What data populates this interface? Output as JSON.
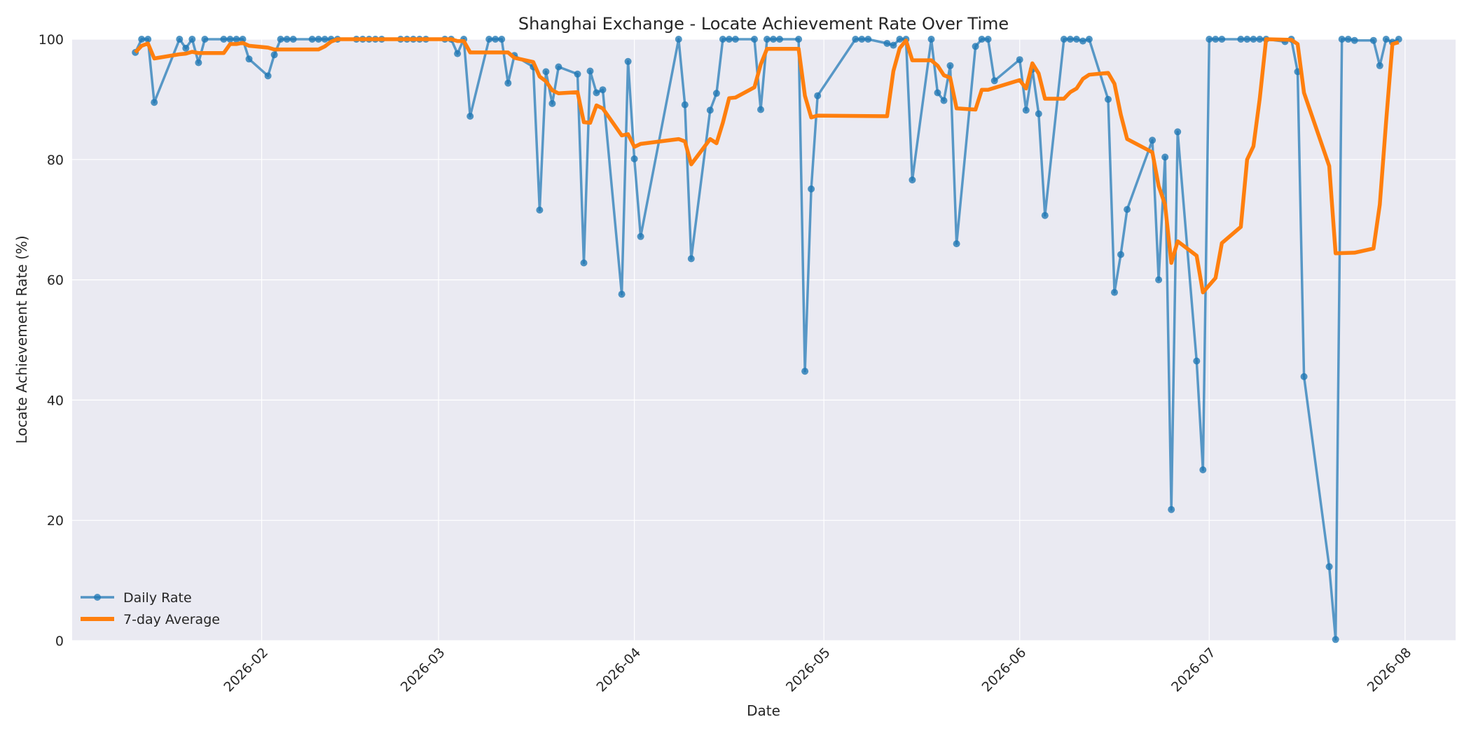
{
  "chart_data": {
    "type": "line",
    "title": "Shanghai Exchange - Locate Achievement Rate Over Time",
    "xlabel": "Date",
    "ylabel": "Locate Achievement Rate (%)",
    "xlim": [
      "2026-01-02",
      "2026-08-09"
    ],
    "ylim": [
      0,
      100
    ],
    "grid": true,
    "legend_position": "bottom-left",
    "x_ticks": [
      "2026-02",
      "2026-03",
      "2026-04",
      "2026-05",
      "2026-06",
      "2026-07",
      "2026-08"
    ],
    "y_ticks": [
      0,
      20,
      40,
      60,
      80,
      100
    ],
    "colors": {
      "daily": "#1f77b4",
      "avg": "#ff7f0e",
      "plot_bg": "#eaeaf2",
      "grid": "#ffffff"
    },
    "series": [
      {
        "name": "Daily Rate",
        "style": "line-markers",
        "points": [
          [
            "2026-01-12",
            97.8
          ],
          [
            "2026-01-13",
            100
          ],
          [
            "2026-01-14",
            100
          ],
          [
            "2026-01-15",
            89.5
          ],
          [
            "2026-01-19",
            100
          ],
          [
            "2026-01-20",
            98.5
          ],
          [
            "2026-01-21",
            100
          ],
          [
            "2026-01-22",
            96.1
          ],
          [
            "2026-01-23",
            100
          ],
          [
            "2026-01-26",
            100
          ],
          [
            "2026-01-27",
            100
          ],
          [
            "2026-01-28",
            100
          ],
          [
            "2026-01-29",
            100
          ],
          [
            "2026-01-30",
            96.7
          ],
          [
            "2026-02-02",
            93.9
          ],
          [
            "2026-02-03",
            97.4
          ],
          [
            "2026-02-04",
            100
          ],
          [
            "2026-02-05",
            100
          ],
          [
            "2026-02-06",
            100
          ],
          [
            "2026-02-09",
            100
          ],
          [
            "2026-02-10",
            100
          ],
          [
            "2026-02-11",
            100
          ],
          [
            "2026-02-12",
            100
          ],
          [
            "2026-02-13",
            100
          ],
          [
            "2026-02-16",
            100
          ],
          [
            "2026-02-17",
            100
          ],
          [
            "2026-02-18",
            100
          ],
          [
            "2026-02-19",
            100
          ],
          [
            "2026-02-20",
            100
          ],
          [
            "2026-02-23",
            100
          ],
          [
            "2026-02-24",
            100
          ],
          [
            "2026-02-25",
            100
          ],
          [
            "2026-02-26",
            100
          ],
          [
            "2026-02-27",
            100
          ],
          [
            "2026-03-02",
            100
          ],
          [
            "2026-03-03",
            100
          ],
          [
            "2026-03-04",
            97.6
          ],
          [
            "2026-03-05",
            100
          ],
          [
            "2026-03-06",
            87.2
          ],
          [
            "2026-03-09",
            100
          ],
          [
            "2026-03-10",
            100
          ],
          [
            "2026-03-11",
            100
          ],
          [
            "2026-03-12",
            92.7
          ],
          [
            "2026-03-13",
            97.3
          ],
          [
            "2026-03-16",
            95.4
          ],
          [
            "2026-03-17",
            71.6
          ],
          [
            "2026-03-18",
            94.6
          ],
          [
            "2026-03-19",
            89.3
          ],
          [
            "2026-03-20",
            95.4
          ],
          [
            "2026-03-23",
            94.2
          ],
          [
            "2026-03-24",
            62.8
          ],
          [
            "2026-03-25",
            94.7
          ],
          [
            "2026-03-26",
            91.1
          ],
          [
            "2026-03-27",
            91.6
          ],
          [
            "2026-03-30",
            57.6
          ],
          [
            "2026-03-31",
            96.3
          ],
          [
            "2026-04-01",
            80.1
          ],
          [
            "2026-04-02",
            67.2
          ],
          [
            "2026-04-08",
            100
          ],
          [
            "2026-04-09",
            89.1
          ],
          [
            "2026-04-10",
            63.5
          ],
          [
            "2026-04-13",
            88.2
          ],
          [
            "2026-04-14",
            91.0
          ],
          [
            "2026-04-15",
            100
          ],
          [
            "2026-04-16",
            100
          ],
          [
            "2026-04-17",
            100
          ],
          [
            "2026-04-20",
            100
          ],
          [
            "2026-04-21",
            88.3
          ],
          [
            "2026-04-22",
            100
          ],
          [
            "2026-04-23",
            100
          ],
          [
            "2026-04-24",
            100
          ],
          [
            "2026-04-27",
            100
          ],
          [
            "2026-04-28",
            44.8
          ],
          [
            "2026-04-29",
            75.1
          ],
          [
            "2026-04-30",
            90.6
          ],
          [
            "2026-05-06",
            100
          ],
          [
            "2026-05-07",
            100
          ],
          [
            "2026-05-08",
            100
          ],
          [
            "2026-05-11",
            99.3
          ],
          [
            "2026-05-12",
            99.0
          ],
          [
            "2026-05-13",
            100
          ],
          [
            "2026-05-14",
            100
          ],
          [
            "2026-05-15",
            76.6
          ],
          [
            "2026-05-18",
            100
          ],
          [
            "2026-05-19",
            91.1
          ],
          [
            "2026-05-20",
            89.8
          ],
          [
            "2026-05-21",
            95.6
          ],
          [
            "2026-05-22",
            66.0
          ],
          [
            "2026-05-25",
            98.8
          ],
          [
            "2026-05-26",
            100
          ],
          [
            "2026-05-27",
            100
          ],
          [
            "2026-05-28",
            93.1
          ],
          [
            "2026-06-01",
            96.6
          ],
          [
            "2026-06-02",
            88.2
          ],
          [
            "2026-06-03",
            95.0
          ],
          [
            "2026-06-04",
            87.6
          ],
          [
            "2026-06-05",
            70.7
          ],
          [
            "2026-06-08",
            100
          ],
          [
            "2026-06-09",
            100
          ],
          [
            "2026-06-10",
            100
          ],
          [
            "2026-06-11",
            99.7
          ],
          [
            "2026-06-12",
            100
          ],
          [
            "2026-06-15",
            90.0
          ],
          [
            "2026-06-16",
            57.9
          ],
          [
            "2026-06-17",
            64.2
          ],
          [
            "2026-06-18",
            71.7
          ],
          [
            "2026-06-22",
            83.2
          ],
          [
            "2026-06-23",
            60.0
          ],
          [
            "2026-06-24",
            80.4
          ],
          [
            "2026-06-25",
            21.8
          ],
          [
            "2026-06-26",
            84.6
          ],
          [
            "2026-06-29",
            46.5
          ],
          [
            "2026-06-30",
            28.4
          ],
          [
            "2026-07-01",
            100
          ],
          [
            "2026-07-02",
            100
          ],
          [
            "2026-07-03",
            100
          ],
          [
            "2026-07-06",
            100
          ],
          [
            "2026-07-07",
            100
          ],
          [
            "2026-07-08",
            100
          ],
          [
            "2026-07-09",
            100
          ],
          [
            "2026-07-10",
            100
          ],
          [
            "2026-07-13",
            99.6
          ],
          [
            "2026-07-14",
            100
          ],
          [
            "2026-07-15",
            94.6
          ],
          [
            "2026-07-16",
            43.9
          ],
          [
            "2026-07-20",
            12.3
          ],
          [
            "2026-07-21",
            0.2
          ],
          [
            "2026-07-22",
            100
          ],
          [
            "2026-07-23",
            100
          ],
          [
            "2026-07-24",
            99.8
          ],
          [
            "2026-07-27",
            99.8
          ],
          [
            "2026-07-28",
            95.6
          ],
          [
            "2026-07-29",
            100
          ],
          [
            "2026-07-30",
            99.5
          ],
          [
            "2026-07-31",
            100
          ]
        ]
      },
      {
        "name": "7-day Average",
        "style": "line",
        "points": [
          [
            "2026-01-12",
            97.8
          ],
          [
            "2026-01-13",
            98.9
          ],
          [
            "2026-01-14",
            99.3
          ],
          [
            "2026-01-15",
            96.8
          ],
          [
            "2026-01-19",
            97.5
          ],
          [
            "2026-01-20",
            97.6
          ],
          [
            "2026-01-21",
            97.9
          ],
          [
            "2026-01-22",
            97.7
          ],
          [
            "2026-01-26",
            97.7
          ],
          [
            "2026-01-27",
            99.2
          ],
          [
            "2026-01-28",
            99.2
          ],
          [
            "2026-01-29",
            99.4
          ],
          [
            "2026-01-30",
            98.9
          ],
          [
            "2026-02-02",
            98.6
          ],
          [
            "2026-02-03",
            98.3
          ],
          [
            "2026-02-06",
            98.3
          ],
          [
            "2026-02-10",
            98.3
          ],
          [
            "2026-02-11",
            98.8
          ],
          [
            "2026-02-12",
            99.6
          ],
          [
            "2026-02-13",
            100
          ],
          [
            "2026-03-03",
            100
          ],
          [
            "2026-03-04",
            99.7
          ],
          [
            "2026-03-05",
            99.7
          ],
          [
            "2026-03-06",
            97.8
          ],
          [
            "2026-03-12",
            97.8
          ],
          [
            "2026-03-13",
            96.9
          ],
          [
            "2026-03-16",
            96.2
          ],
          [
            "2026-03-17",
            93.8
          ],
          [
            "2026-03-18",
            93.0
          ],
          [
            "2026-03-19",
            91.5
          ],
          [
            "2026-03-20",
            91.0
          ],
          [
            "2026-03-23",
            91.2
          ],
          [
            "2026-03-24",
            86.2
          ],
          [
            "2026-03-25",
            86.1
          ],
          [
            "2026-03-26",
            89.0
          ],
          [
            "2026-03-27",
            88.5
          ],
          [
            "2026-03-30",
            84.0
          ],
          [
            "2026-03-31",
            84.2
          ],
          [
            "2026-04-01",
            82.1
          ],
          [
            "2026-04-02",
            82.6
          ],
          [
            "2026-04-08",
            83.4
          ],
          [
            "2026-04-09",
            83.0
          ],
          [
            "2026-04-10",
            79.2
          ],
          [
            "2026-04-13",
            83.4
          ],
          [
            "2026-04-14",
            82.7
          ],
          [
            "2026-04-15",
            86.1
          ],
          [
            "2026-04-16",
            90.2
          ],
          [
            "2026-04-17",
            90.3
          ],
          [
            "2026-04-20",
            92.0
          ],
          [
            "2026-04-21",
            95.8
          ],
          [
            "2026-04-22",
            98.4
          ],
          [
            "2026-04-27",
            98.4
          ],
          [
            "2026-04-28",
            90.6
          ],
          [
            "2026-04-29",
            87.0
          ],
          [
            "2026-04-30",
            87.3
          ],
          [
            "2026-05-11",
            87.2
          ],
          [
            "2026-05-12",
            94.7
          ],
          [
            "2026-05-13",
            98.5
          ],
          [
            "2026-05-14",
            99.8
          ],
          [
            "2026-05-15",
            96.5
          ],
          [
            "2026-05-18",
            96.5
          ],
          [
            "2026-05-19",
            95.6
          ],
          [
            "2026-05-20",
            94.0
          ],
          [
            "2026-05-21",
            93.6
          ],
          [
            "2026-05-22",
            88.5
          ],
          [
            "2026-05-25",
            88.3
          ],
          [
            "2026-05-26",
            91.6
          ],
          [
            "2026-05-27",
            91.6
          ],
          [
            "2026-06-01",
            93.2
          ],
          [
            "2026-06-02",
            91.8
          ],
          [
            "2026-06-03",
            96.0
          ],
          [
            "2026-06-04",
            94.3
          ],
          [
            "2026-06-05",
            90.1
          ],
          [
            "2026-06-08",
            90.1
          ],
          [
            "2026-06-09",
            91.2
          ],
          [
            "2026-06-10",
            91.8
          ],
          [
            "2026-06-11",
            93.4
          ],
          [
            "2026-06-12",
            94.1
          ],
          [
            "2026-06-15",
            94.4
          ],
          [
            "2026-06-16",
            92.6
          ],
          [
            "2026-06-17",
            87.5
          ],
          [
            "2026-06-18",
            83.4
          ],
          [
            "2026-06-22",
            81.2
          ],
          [
            "2026-06-23",
            75.6
          ],
          [
            "2026-06-24",
            72.5
          ],
          [
            "2026-06-25",
            62.8
          ],
          [
            "2026-06-26",
            66.4
          ],
          [
            "2026-06-29",
            64.0
          ],
          [
            "2026-06-30",
            57.9
          ],
          [
            "2026-07-01",
            59.1
          ],
          [
            "2026-07-02",
            60.3
          ],
          [
            "2026-07-03",
            66.1
          ],
          [
            "2026-07-06",
            68.8
          ],
          [
            "2026-07-07",
            80.0
          ],
          [
            "2026-07-08",
            82.2
          ],
          [
            "2026-07-09",
            90.1
          ],
          [
            "2026-07-10",
            100
          ],
          [
            "2026-07-14",
            99.9
          ],
          [
            "2026-07-15",
            99.2
          ],
          [
            "2026-07-16",
            91.1
          ],
          [
            "2026-07-20",
            78.9
          ],
          [
            "2026-07-21",
            64.4
          ],
          [
            "2026-07-24",
            64.5
          ],
          [
            "2026-07-27",
            65.2
          ],
          [
            "2026-07-28",
            72.5
          ],
          [
            "2026-07-29",
            86.3
          ],
          [
            "2026-07-30",
            99.2
          ],
          [
            "2026-07-31",
            99.5
          ]
        ]
      }
    ]
  }
}
